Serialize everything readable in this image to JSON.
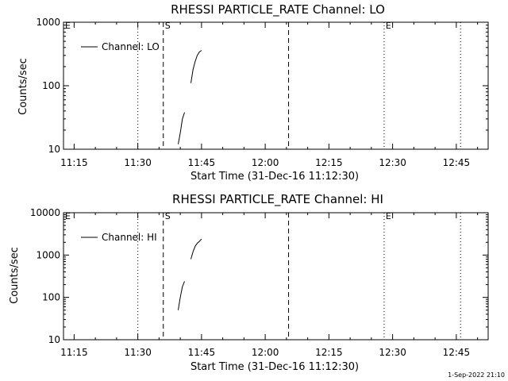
{
  "chart_data": [
    {
      "type": "line",
      "title": "RHESSI PARTICLE_RATE Channel: LO",
      "xlabel": "Start Time (31-Dec-16 11:12:30)",
      "ylabel": "Counts/sec",
      "yscale": "log",
      "ylim": [
        10,
        1000
      ],
      "ytick_labels": [
        "10",
        "100",
        "1000"
      ],
      "xlim": [
        "11:12:30",
        "12:52:30"
      ],
      "xtick_labels": [
        "11:15",
        "11:30",
        "11:45",
        "12:00",
        "12:15",
        "12:30",
        "12:45"
      ],
      "legend": {
        "position": "top-left",
        "label": "Channel: LO"
      },
      "series": [
        {
          "name": "Channel: LO",
          "x": [
            "11:39:30",
            "11:40:00",
            "11:40:30",
            "11:41:00"
          ],
          "y": [
            12,
            18,
            30,
            38
          ]
        },
        {
          "name": "Channel: LO",
          "x": [
            "11:42:30",
            "11:43:00",
            "11:43:30",
            "11:44:00",
            "11:44:30",
            "11:45:00"
          ],
          "y": [
            110,
            180,
            240,
            300,
            340,
            360
          ]
        }
      ],
      "markers": [
        {
          "label": "E",
          "time": "11:12:30",
          "style": "dotted"
        },
        {
          "label": "",
          "time": "11:30:00",
          "style": "dotted"
        },
        {
          "label": "S",
          "time": "11:36:00",
          "style": "dashed"
        },
        {
          "label": "",
          "time": "12:05:30",
          "style": "dashed"
        },
        {
          "label": "E",
          "time": "12:28:00",
          "style": "dotted"
        },
        {
          "label": "",
          "time": "12:46:00",
          "style": "dotted"
        }
      ]
    },
    {
      "type": "line",
      "title": "RHESSI PARTICLE_RATE Channel: HI",
      "xlabel": "Start Time (31-Dec-16 11:12:30)",
      "ylabel": "Counts/sec",
      "yscale": "log",
      "ylim": [
        10,
        10000
      ],
      "ytick_labels": [
        "10",
        "100",
        "1000",
        "10000"
      ],
      "xlim": [
        "11:12:30",
        "12:52:30"
      ],
      "xtick_labels": [
        "11:15",
        "11:30",
        "11:45",
        "12:00",
        "12:15",
        "12:30",
        "12:45"
      ],
      "legend": {
        "position": "top-left",
        "label": "Channel: HI"
      },
      "series": [
        {
          "name": "Channel: HI",
          "x": [
            "11:39:30",
            "11:40:00",
            "11:40:30",
            "11:41:00"
          ],
          "y": [
            50,
            100,
            180,
            240
          ]
        },
        {
          "name": "Channel: HI",
          "x": [
            "11:42:30",
            "11:43:00",
            "11:43:30",
            "11:44:00",
            "11:44:30",
            "11:45:00"
          ],
          "y": [
            800,
            1200,
            1600,
            1900,
            2100,
            2400
          ]
        }
      ],
      "markers": [
        {
          "label": "E",
          "time": "11:12:30",
          "style": "dotted"
        },
        {
          "label": "",
          "time": "11:30:00",
          "style": "dotted"
        },
        {
          "label": "S",
          "time": "11:36:00",
          "style": "dashed"
        },
        {
          "label": "",
          "time": "12:05:30",
          "style": "dashed"
        },
        {
          "label": "E",
          "time": "12:28:00",
          "style": "dotted"
        },
        {
          "label": "",
          "time": "12:46:00",
          "style": "dotted"
        }
      ]
    }
  ],
  "footer": {
    "timestamp": "1-Sep-2022 21:10"
  }
}
